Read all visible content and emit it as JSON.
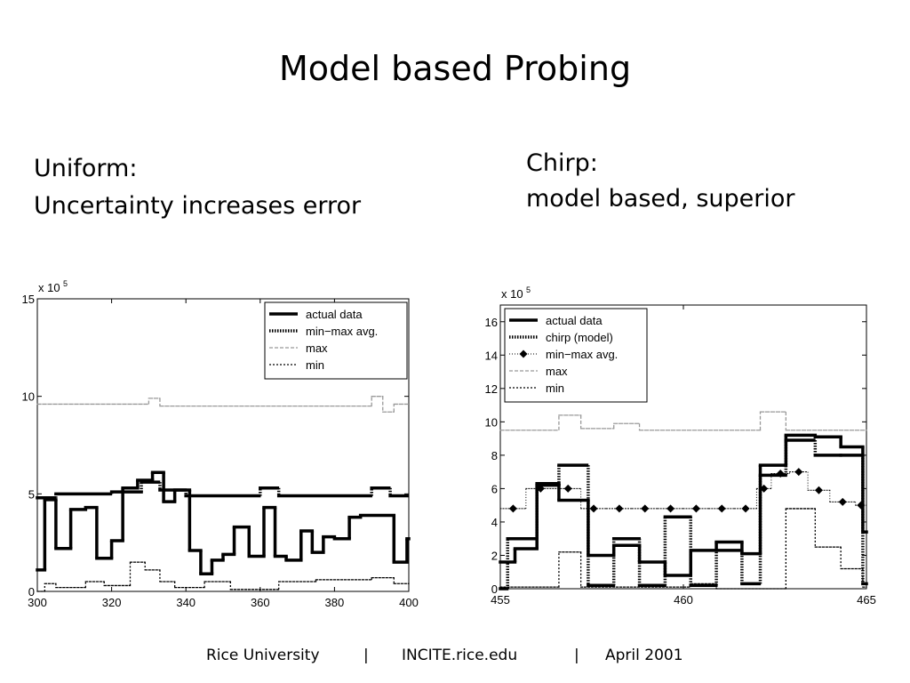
{
  "slide": {
    "title": "Model based Probing",
    "left_caption": [
      "Uniform:",
      "Uncertainty increases error"
    ],
    "right_caption": [
      "Chirp:",
      "model based, superior"
    ],
    "footer": [
      "Rice University",
      "|",
      "INCITE.rice.edu",
      "|",
      "April 2001"
    ]
  },
  "chart_data": [
    {
      "type": "step",
      "y_multiplier": {
        "text": "x 10",
        "exponent": "5"
      },
      "xlim": [
        300,
        400
      ],
      "ylim": [
        0,
        15
      ],
      "xticks": [
        300,
        320,
        340,
        360,
        380,
        400
      ],
      "yticks": [
        0,
        5,
        10,
        15
      ],
      "legend": "upper right",
      "series": [
        {
          "name": "actual data",
          "style": "solid-thick",
          "color": "#000000",
          "x": [
            300,
            302,
            305,
            309,
            313,
            316,
            320,
            323,
            327,
            331,
            334,
            337,
            341,
            344,
            347,
            350,
            353,
            357,
            361,
            364,
            367,
            371,
            374,
            377,
            380,
            384,
            387,
            396,
            399.5
          ],
          "values": [
            1.1,
            4.7,
            2.2,
            4.2,
            4.3,
            1.7,
            2.6,
            5.3,
            5.7,
            6.1,
            4.6,
            5.2,
            2.1,
            0.9,
            1.6,
            1.9,
            3.3,
            1.8,
            4.3,
            1.8,
            1.6,
            3.1,
            2.0,
            2.8,
            2.7,
            3.8,
            3.9,
            1.5,
            2.7
          ]
        },
        {
          "name": "min−max avg.",
          "style": "dotted-thick",
          "color": "#000000",
          "x": [
            300,
            305,
            320,
            328,
            333,
            340,
            360,
            365,
            390,
            395
          ],
          "values": [
            4.8,
            5.0,
            5.1,
            5.6,
            5.2,
            4.9,
            5.3,
            4.9,
            5.3,
            4.9
          ]
        },
        {
          "name": "max",
          "style": "dashed-light",
          "color": "#999999",
          "x": [
            300,
            330,
            333,
            390,
            393,
            396
          ],
          "values": [
            9.6,
            9.9,
            9.5,
            10.0,
            9.2,
            9.6
          ]
        },
        {
          "name": "min",
          "style": "dotted",
          "color": "#000000",
          "x": [
            300,
            302,
            305,
            313,
            318,
            325,
            329,
            333,
            337,
            345,
            352,
            365,
            375,
            390,
            396
          ],
          "values": [
            0.0,
            0.4,
            0.2,
            0.5,
            0.3,
            1.5,
            1.1,
            0.5,
            0.2,
            0.5,
            0.1,
            0.5,
            0.6,
            0.7,
            0.4
          ]
        }
      ]
    },
    {
      "type": "step",
      "y_multiplier": {
        "text": "x 10",
        "exponent": "5"
      },
      "xlim": [
        455,
        465
      ],
      "ylim": [
        0,
        17
      ],
      "xticks": [
        455,
        460,
        465
      ],
      "yticks": [
        0,
        2,
        4,
        6,
        8,
        10,
        12,
        14,
        16
      ],
      "legend": "upper left",
      "series": [
        {
          "name": "actual data",
          "style": "solid-thick",
          "color": "#000000",
          "x": [
            455,
            455.4,
            456,
            456.6,
            457.4,
            458.1,
            458.8,
            459.5,
            460.2,
            460.9,
            461.6,
            462.1,
            462.8,
            463.6,
            464.3,
            464.9
          ],
          "values": [
            1.6,
            2.4,
            6.3,
            5.3,
            2.0,
            2.6,
            1.6,
            0.8,
            2.3,
            2.8,
            2.1,
            7.4,
            9.2,
            9.1,
            8.5,
            3.4
          ]
        },
        {
          "name": "chirp (model)",
          "style": "dotted-thick",
          "color": "#000000",
          "x": [
            455,
            455.2,
            456,
            456.6,
            457.4,
            458.1,
            458.8,
            459.5,
            460.2,
            460.9,
            461.6,
            462.1,
            462.8,
            463.6,
            464.3,
            464.9
          ],
          "values": [
            0.0,
            3.0,
            6.2,
            7.4,
            0.2,
            3.0,
            0.2,
            4.3,
            0.2,
            2.3,
            0.3,
            6.8,
            8.9,
            8.0,
            8.0,
            0.3
          ]
        },
        {
          "name": "min−max avg.",
          "style": "dotted-diamond",
          "color": "#000000",
          "x": [
            455,
            455.7,
            456.5,
            457.2,
            457.9,
            458.6,
            459.3,
            460.0,
            460.7,
            461.4,
            462.0,
            462.4,
            462.9,
            463.4,
            464.0,
            464.7
          ],
          "values": [
            4.8,
            6.0,
            6.0,
            4.8,
            4.8,
            4.8,
            4.8,
            4.8,
            4.8,
            4.8,
            6.0,
            6.9,
            7.0,
            5.9,
            5.2,
            5.0
          ]
        },
        {
          "name": "max",
          "style": "dashed-light",
          "color": "#999999",
          "x": [
            455,
            456.6,
            457.2,
            458.1,
            458.8,
            462.1,
            462.8
          ],
          "values": [
            9.5,
            10.4,
            9.6,
            9.9,
            9.5,
            10.6,
            9.5
          ]
        },
        {
          "name": "min",
          "style": "dotted",
          "color": "#000000",
          "x": [
            455,
            456.6,
            457.2,
            460.2,
            460.9,
            462.8,
            463.6,
            464.3,
            464.9
          ],
          "values": [
            0.1,
            2.2,
            0.1,
            0.3,
            0.0,
            4.8,
            2.5,
            1.2,
            0.1
          ]
        }
      ]
    }
  ]
}
